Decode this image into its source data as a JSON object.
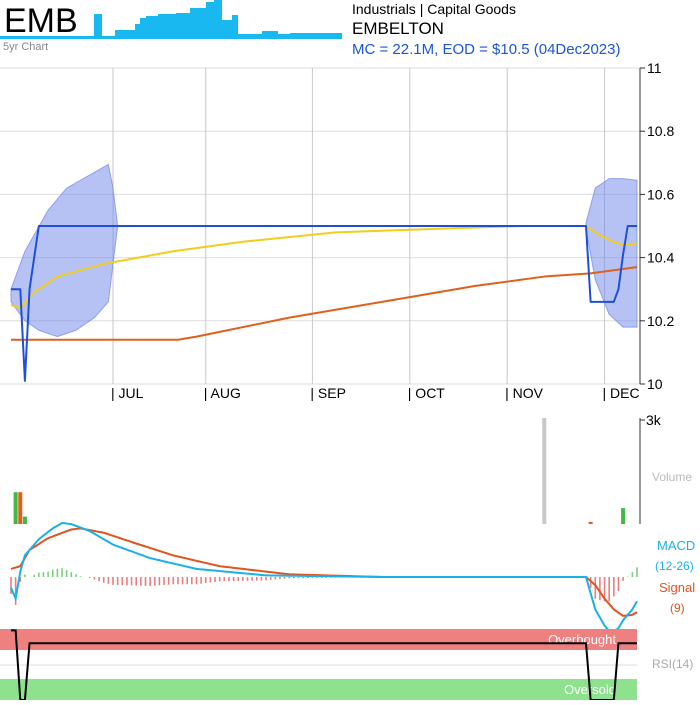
{
  "header": {
    "ticker": "EMB",
    "thumb_label": "5yr Chart",
    "sector": "Industrials | Capital Goods",
    "company": "EMBELTON",
    "summary": "MC = 22.1M, EOD = $10.5 (04Dec2023)"
  },
  "colors": {
    "price": "#1f4fd8",
    "ma_fast": "#f2cd1e",
    "ma_slow": "#e0601a",
    "band": "#6f86ea",
    "macd": "#1ab0e8",
    "signal": "#e0541e",
    "hist_pos": "#7ad07a",
    "hist_neg": "#ea7d7d",
    "overbought": "#ee8080",
    "oversold": "#8ee28e",
    "vol_up": "#43b943",
    "vol_down": "#e0601a",
    "vol_neutral": "#c8c8c8",
    "thumb": "#1ab8f0"
  },
  "chart_data": [
    {
      "type": "line",
      "name": "price",
      "months": [
        "JUL",
        "AUG",
        "SEP",
        "OCT",
        "NOV",
        "DEC"
      ],
      "yticks": [
        10,
        10.2,
        10.4,
        10.6,
        10.8,
        11
      ],
      "ylim": [
        10,
        11
      ],
      "series": [
        {
          "key": "close",
          "points": [
            [
              0,
              10.3
            ],
            [
              2,
              10.3
            ],
            [
              3,
              10.01
            ],
            [
              4,
              10.3
            ],
            [
              6,
              10.5
            ],
            [
              12,
              10.5
            ],
            [
              25,
              10.5
            ],
            [
              40,
              10.5
            ],
            [
              80,
              10.5
            ],
            [
              110,
              10.5
            ],
            [
              124,
              10.5
            ],
            [
              125,
              10.26
            ],
            [
              130,
              10.26
            ],
            [
              131,
              10.3
            ],
            [
              132,
              10.41
            ],
            [
              133,
              10.5
            ],
            [
              135,
              10.5
            ]
          ]
        },
        {
          "key": "ma_fast",
          "points": [
            [
              0,
              10.25
            ],
            [
              2,
              10.24
            ],
            [
              5,
              10.29
            ],
            [
              10,
              10.34
            ],
            [
              20,
              10.38
            ],
            [
              35,
              10.42
            ],
            [
              50,
              10.45
            ],
            [
              70,
              10.48
            ],
            [
              90,
              10.49
            ],
            [
              110,
              10.5
            ],
            [
              124,
              10.5
            ],
            [
              127,
              10.47
            ],
            [
              130,
              10.45
            ],
            [
              132,
              10.44
            ],
            [
              135,
              10.445
            ]
          ]
        },
        {
          "key": "ma_slow",
          "points": [
            [
              0,
              10.14
            ],
            [
              10,
              10.14
            ],
            [
              20,
              10.14
            ],
            [
              36,
              10.14
            ],
            [
              40,
              10.15
            ],
            [
              60,
              10.21
            ],
            [
              80,
              10.26
            ],
            [
              100,
              10.31
            ],
            [
              115,
              10.34
            ],
            [
              125,
              10.35
            ],
            [
              135,
              10.37
            ]
          ]
        }
      ],
      "band": {
        "segments": [
          {
            "upper": [
              [
                0,
                10.3
              ],
              [
                3,
                10.42
              ],
              [
                8,
                10.55
              ],
              [
                12,
                10.62
              ],
              [
                18,
                10.67
              ],
              [
                21,
                10.695
              ],
              [
                22,
                10.62
              ],
              [
                23,
                10.5
              ]
            ],
            "lower": [
              [
                0,
                10.26
              ],
              [
                3,
                10.2
              ],
              [
                6,
                10.17
              ],
              [
                10,
                10.15
              ],
              [
                14,
                10.17
              ],
              [
                18,
                10.21
              ],
              [
                21,
                10.26
              ],
              [
                23,
                10.5
              ]
            ]
          },
          {
            "upper": [
              [
                124,
                10.51
              ],
              [
                126,
                10.62
              ],
              [
                129,
                10.65
              ],
              [
                132,
                10.65
              ],
              [
                135,
                10.645
              ]
            ],
            "lower": [
              [
                124,
                10.49
              ],
              [
                126,
                10.33
              ],
              [
                129,
                10.22
              ],
              [
                132,
                10.18
              ],
              [
                135,
                10.18
              ]
            ]
          }
        ]
      }
    },
    {
      "type": "bar",
      "name": "volume",
      "ymax_label": "3k",
      "label": "Volume",
      "bars": [
        {
          "i": 1,
          "v": 0.3,
          "c": "vol_up"
        },
        {
          "i": 2,
          "v": 0.3,
          "c": "vol_down"
        },
        {
          "i": 3,
          "v": 0.07,
          "c": "vol_up"
        },
        {
          "i": 115,
          "v": 1.0,
          "c": "vol_neutral"
        },
        {
          "i": 125,
          "v": 0.02,
          "c": "vol_down"
        },
        {
          "i": 132,
          "v": 0.15,
          "c": "vol_up"
        }
      ]
    },
    {
      "type": "line",
      "name": "macd",
      "label_macd": "MACD",
      "label_params": "(12-26)",
      "label_signal": "Signal",
      "label_signal_params": "(9)",
      "macd": [
        [
          0,
          -0.2
        ],
        [
          1,
          -0.4
        ],
        [
          2,
          0.1
        ],
        [
          3,
          0.4
        ],
        [
          6,
          0.7
        ],
        [
          9,
          0.9
        ],
        [
          11,
          1.0
        ],
        [
          13,
          0.98
        ],
        [
          17,
          0.85
        ],
        [
          22,
          0.6
        ],
        [
          30,
          0.35
        ],
        [
          40,
          0.15
        ],
        [
          55,
          0.03
        ],
        [
          80,
          0
        ],
        [
          110,
          0
        ],
        [
          124,
          0
        ],
        [
          125,
          -0.3
        ],
        [
          126,
          -0.6
        ],
        [
          128,
          -0.9
        ],
        [
          129,
          -1.0
        ],
        [
          130,
          -1.0
        ],
        [
          131,
          -0.95
        ],
        [
          132,
          -0.8
        ],
        [
          134,
          -0.6
        ],
        [
          135,
          -0.45
        ]
      ],
      "signal": [
        [
          0,
          0.15
        ],
        [
          2,
          0.2
        ],
        [
          4,
          0.5
        ],
        [
          8,
          0.72
        ],
        [
          13,
          0.88
        ],
        [
          15,
          0.9
        ],
        [
          20,
          0.82
        ],
        [
          27,
          0.62
        ],
        [
          35,
          0.4
        ],
        [
          45,
          0.2
        ],
        [
          60,
          0.05
        ],
        [
          80,
          0
        ],
        [
          124,
          0
        ],
        [
          126,
          -0.15
        ],
        [
          128,
          -0.4
        ],
        [
          130,
          -0.6
        ],
        [
          132,
          -0.72
        ],
        [
          134,
          -0.7
        ],
        [
          135,
          -0.65
        ]
      ]
    },
    {
      "type": "line",
      "name": "rsi",
      "label": "RSI(14)",
      "overbought_label": "Overbought",
      "oversold_label": "Oversold",
      "rsi": [
        [
          0,
          98
        ],
        [
          1,
          98
        ],
        [
          2,
          0
        ],
        [
          3,
          0
        ],
        [
          4,
          80
        ],
        [
          124,
          80
        ],
        [
          125,
          0
        ],
        [
          130,
          0
        ],
        [
          131,
          80
        ],
        [
          135,
          80
        ]
      ]
    }
  ]
}
